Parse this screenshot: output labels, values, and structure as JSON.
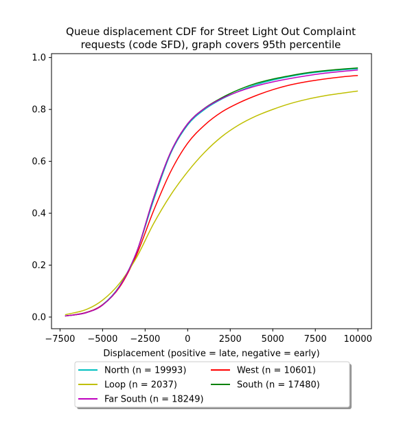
{
  "chart_data": {
    "type": "line",
    "title_line1": "Queue displacement CDF for Street Light Out Complaint",
    "title_line2": "requests (code SFD), graph covers 95th percentile",
    "xlabel": "Displacement (positive = late, negative = early)",
    "ylabel": "",
    "xlim": [
      -8000,
      10800
    ],
    "ylim": [
      -0.045,
      1.015
    ],
    "xticks": [
      -7500,
      -5000,
      -2500,
      0,
      2500,
      5000,
      7500,
      10000
    ],
    "xtick_labels": [
      "−7500",
      "−5000",
      "−2500",
      "0",
      "2500",
      "5000",
      "7500",
      "10000"
    ],
    "yticks": [
      0.0,
      0.2,
      0.4,
      0.6,
      0.8,
      1.0
    ],
    "ytick_labels": [
      "0.0",
      "0.2",
      "0.4",
      "0.6",
      "0.8",
      "1.0"
    ],
    "grid": false,
    "legend_position": "below-plot",
    "x": [
      -7200,
      -6000,
      -5000,
      -4000,
      -3000,
      -2000,
      -1000,
      0,
      1000,
      2000,
      3000,
      4000,
      5000,
      6000,
      7000,
      8000,
      9000,
      10000
    ],
    "series": [
      {
        "name": "North (n = 19993)",
        "color": "#00bfbf",
        "values": [
          0.004,
          0.017,
          0.048,
          0.12,
          0.25,
          0.45,
          0.63,
          0.74,
          0.8,
          0.84,
          0.87,
          0.895,
          0.913,
          0.927,
          0.938,
          0.946,
          0.952,
          0.957
        ]
      },
      {
        "name": "West (n = 10601)",
        "color": "#ff0000",
        "values": [
          0.004,
          0.017,
          0.047,
          0.115,
          0.24,
          0.41,
          0.56,
          0.67,
          0.74,
          0.79,
          0.825,
          0.853,
          0.876,
          0.894,
          0.907,
          0.917,
          0.925,
          0.931
        ]
      },
      {
        "name": "Loop (n = 2037)",
        "color": "#bfbf00",
        "values": [
          0.009,
          0.028,
          0.065,
          0.13,
          0.23,
          0.36,
          0.47,
          0.56,
          0.635,
          0.695,
          0.74,
          0.774,
          0.8,
          0.822,
          0.839,
          0.852,
          0.862,
          0.871
        ]
      },
      {
        "name": "South (n = 17480)",
        "color": "#008000",
        "values": [
          0.004,
          0.016,
          0.046,
          0.118,
          0.25,
          0.46,
          0.635,
          0.745,
          0.805,
          0.845,
          0.876,
          0.9,
          0.917,
          0.93,
          0.941,
          0.949,
          0.955,
          0.96
        ]
      },
      {
        "name": "Far South (n = 18249)",
        "color": "#bf00bf",
        "values": [
          0.004,
          0.016,
          0.046,
          0.118,
          0.25,
          0.46,
          0.635,
          0.745,
          0.804,
          0.842,
          0.869,
          0.89,
          0.906,
          0.919,
          0.93,
          0.939,
          0.946,
          0.952
        ]
      }
    ]
  }
}
